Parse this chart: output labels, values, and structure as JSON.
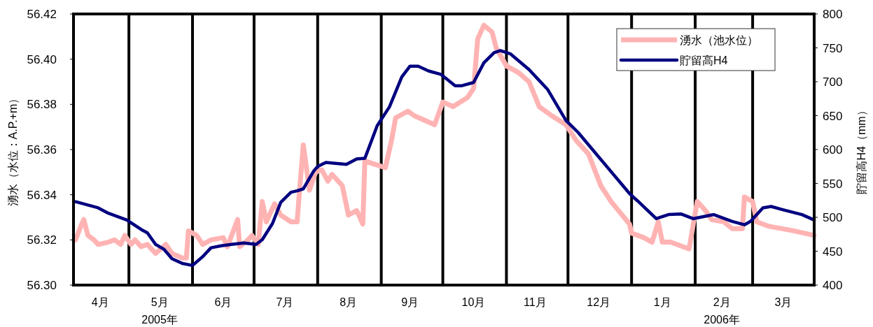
{
  "chart_data": {
    "type": "line",
    "ylabel": "湧水（水位：A.P.+m）",
    "y2label": "貯留高H4（mm）",
    "xlim": [
      "2005-04-04",
      "2006-03-31"
    ],
    "xticks": [
      {
        "value": "2005-04-17",
        "label": "4月"
      },
      {
        "value": "2005-05-16",
        "label": "5月"
      },
      {
        "value": "2005-06-16",
        "label": "6月"
      },
      {
        "value": "2005-07-16",
        "label": "7月"
      },
      {
        "value": "2005-08-16",
        "label": "8月"
      },
      {
        "value": "2005-09-15",
        "label": "9月"
      },
      {
        "value": "2005-10-16",
        "label": "10月"
      },
      {
        "value": "2005-11-15",
        "label": "11月"
      },
      {
        "value": "2005-12-16",
        "label": "12月"
      },
      {
        "value": "2006-01-16",
        "label": "1月"
      },
      {
        "value": "2006-02-14",
        "label": "2月"
      },
      {
        "value": "2006-03-16",
        "label": "3月"
      }
    ],
    "ylim": [
      56.3,
      56.42
    ],
    "yticks": [
      {
        "value": 56.3,
        "label": "56.30"
      },
      {
        "value": 56.32,
        "label": "56.32"
      },
      {
        "value": 56.34,
        "label": "56.34"
      },
      {
        "value": 56.36,
        "label": "56.36"
      },
      {
        "value": 56.38,
        "label": "56.38"
      },
      {
        "value": 56.4,
        "label": "56.40"
      },
      {
        "value": 56.42,
        "label": "56.42"
      }
    ],
    "y2lim": [
      400,
      800
    ],
    "y2ticks": [
      400,
      450,
      500,
      550,
      600,
      650,
      700,
      750,
      800
    ],
    "legend": "top right",
    "ref_lines": [
      {
        "axis": "x",
        "value": "2005-05-01",
        "color": "#000000"
      },
      {
        "axis": "x",
        "value": "2005-06-01",
        "color": "#000000"
      },
      {
        "axis": "x",
        "value": "2005-07-01",
        "color": "#000000"
      },
      {
        "axis": "x",
        "value": "2005-08-01",
        "color": "#000000"
      },
      {
        "axis": "x",
        "value": "2005-09-01",
        "color": "#000000"
      },
      {
        "axis": "x",
        "value": "2005-10-01",
        "color": "#000000"
      },
      {
        "axis": "x",
        "value": "2005-11-01",
        "color": "#000000"
      },
      {
        "axis": "x",
        "value": "2005-12-01",
        "color": "#000000"
      },
      {
        "axis": "x",
        "value": "2006-01-01",
        "color": "#000000"
      },
      {
        "axis": "x",
        "value": "2006-02-01",
        "color": "#000000"
      },
      {
        "axis": "x",
        "value": "2006-03-01",
        "color": "#000000"
      }
    ],
    "annotations": [
      "2005年",
      "2006年"
    ],
    "series": [
      {
        "name": "湧水（池水位）",
        "color": "#ffb3b3",
        "x": [
          "2005-04-05",
          "2005-04-08",
          "2005-04-09",
          "2005-04-11",
          "2005-04-14",
          "2005-04-16",
          "2005-04-21",
          "2005-04-24",
          "2005-04-27",
          "2005-04-29",
          "2005-05-02",
          "2005-05-04",
          "2005-05-07",
          "2005-05-10",
          "2005-05-14",
          "2005-05-19",
          "2005-05-22",
          "2005-05-27",
          "2005-05-29",
          "2005-05-30",
          "2005-06-03",
          "2005-06-06",
          "2005-06-10",
          "2005-06-16",
          "2005-06-18",
          "2005-06-23",
          "2005-06-24",
          "2005-06-28",
          "2005-06-30",
          "2005-07-03",
          "2005-07-05",
          "2005-07-07",
          "2005-07-11",
          "2005-07-14",
          "2005-07-19",
          "2005-07-22",
          "2005-07-23",
          "2005-07-25",
          "2005-07-28",
          "2005-07-31",
          "2005-08-03",
          "2005-08-06",
          "2005-08-08",
          "2005-08-13",
          "2005-08-16",
          "2005-08-20",
          "2005-08-23",
          "2005-08-24",
          "2005-08-27",
          "2005-09-03",
          "2005-09-06",
          "2005-09-08",
          "2005-09-14",
          "2005-09-17",
          "2005-09-22",
          "2005-09-27",
          "2005-10-01",
          "2005-10-06",
          "2005-10-13",
          "2005-10-16",
          "2005-10-18",
          "2005-10-21",
          "2005-10-25",
          "2005-10-27",
          "2005-11-01",
          "2005-11-07",
          "2005-11-12",
          "2005-11-17",
          "2005-11-23",
          "2005-11-30",
          "2005-12-05",
          "2005-12-11",
          "2005-12-17",
          "2005-12-22",
          "2005-12-31",
          "2006-01-01",
          "2006-01-07",
          "2006-01-11",
          "2006-01-14",
          "2006-01-16",
          "2006-01-20",
          "2006-01-29",
          "2006-02-02",
          "2006-02-06",
          "2006-02-09",
          "2006-02-15",
          "2006-02-19",
          "2006-02-24",
          "2006-02-25",
          "2006-03-01",
          "2006-03-03",
          "2006-03-09",
          "2006-03-15",
          "2006-03-21",
          "2006-03-26",
          "2006-03-31"
        ],
        "values": [
          56.32,
          56.327,
          56.329,
          56.322,
          56.32,
          56.318,
          56.319,
          56.32,
          56.318,
          56.322,
          56.318,
          56.32,
          56.317,
          56.318,
          56.314,
          56.318,
          56.314,
          56.312,
          56.312,
          56.324,
          56.322,
          56.318,
          56.32,
          56.321,
          56.317,
          56.329,
          56.317,
          56.32,
          56.322,
          56.318,
          56.337,
          56.328,
          56.336,
          56.331,
          56.328,
          56.328,
          56.34,
          56.362,
          56.342,
          56.35,
          56.351,
          56.346,
          56.349,
          56.344,
          56.331,
          56.333,
          56.327,
          56.355,
          56.354,
          56.352,
          56.364,
          56.374,
          56.377,
          56.375,
          56.373,
          56.371,
          56.381,
          56.379,
          56.383,
          56.387,
          56.409,
          56.415,
          56.412,
          56.405,
          56.397,
          56.394,
          56.39,
          56.379,
          56.375,
          56.371,
          56.364,
          56.358,
          56.344,
          56.337,
          56.327,
          56.323,
          56.321,
          56.319,
          56.328,
          56.319,
          56.319,
          56.316,
          56.337,
          56.333,
          56.329,
          56.328,
          56.325,
          56.325,
          56.339,
          56.337,
          56.328,
          56.326,
          56.325,
          56.324,
          56.323,
          56.322
        ]
      },
      {
        "name": "貯留高H4",
        "color": "#000080",
        "axis": "y2",
        "x": [
          "2005-04-05",
          "2005-04-16",
          "2005-04-21",
          "2005-04-30",
          "2005-05-07",
          "2005-05-10",
          "2005-05-14",
          "2005-05-18",
          "2005-05-22",
          "2005-05-27",
          "2005-06-01",
          "2005-06-06",
          "2005-06-10",
          "2005-06-15",
          "2005-06-20",
          "2005-06-26",
          "2005-07-02",
          "2005-07-05",
          "2005-07-10",
          "2005-07-14",
          "2005-07-19",
          "2005-07-22",
          "2005-07-25",
          "2005-07-30",
          "2005-08-01",
          "2005-08-05",
          "2005-08-15",
          "2005-08-20",
          "2005-08-24",
          "2005-08-30",
          "2005-09-05",
          "2005-09-11",
          "2005-09-15",
          "2005-09-19",
          "2005-09-24",
          "2005-09-30",
          "2005-10-07",
          "2005-10-10",
          "2005-10-16",
          "2005-10-21",
          "2005-10-26",
          "2005-10-29",
          "2005-11-03",
          "2005-11-12",
          "2005-11-21",
          "2005-11-30",
          "2005-12-06",
          "2005-12-31",
          "2006-01-04",
          "2006-01-13",
          "2006-01-19",
          "2006-01-25",
          "2006-01-31",
          "2006-02-10",
          "2006-02-19",
          "2006-02-25",
          "2006-02-28",
          "2006-03-06",
          "2006-03-10",
          "2006-03-16",
          "2006-03-25",
          "2006-03-31"
        ],
        "values": [
          523,
          514,
          506,
          496,
          482,
          477,
          460,
          453,
          439,
          432,
          429,
          442,
          455,
          458,
          460,
          462,
          460,
          467,
          491,
          522,
          537,
          539,
          542,
          568,
          575,
          581,
          578,
          586,
          587,
          635,
          663,
          707,
          723,
          723,
          716,
          711,
          694,
          694,
          699,
          728,
          743,
          746,
          741,
          718,
          689,
          643,
          625,
          535,
          524,
          498,
          504,
          505,
          498,
          504,
          494,
          489,
          494,
          514,
          516,
          511,
          504,
          496
        ]
      }
    ]
  }
}
